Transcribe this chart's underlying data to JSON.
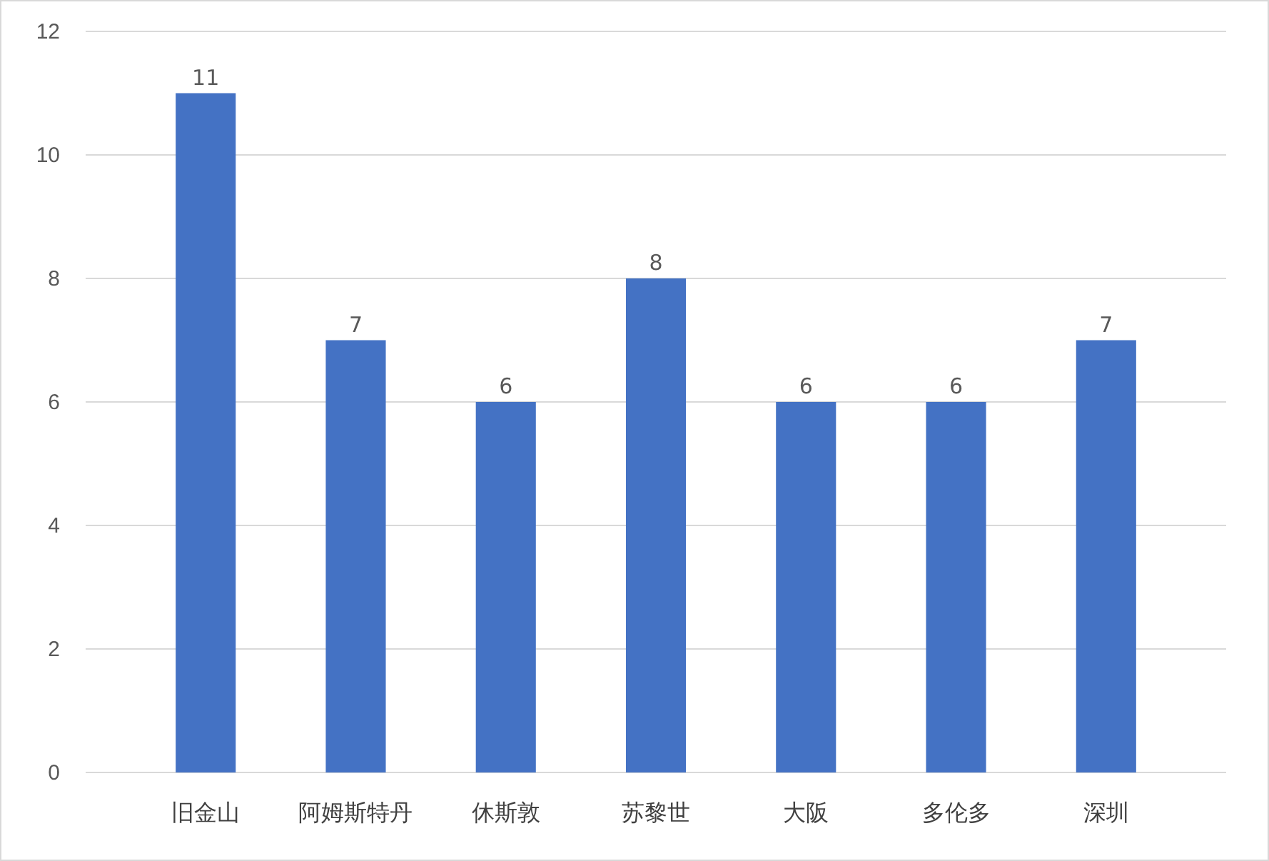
{
  "chart_data": {
    "type": "bar",
    "categories": [
      "旧金山",
      "阿姆斯特丹",
      "休斯敦",
      "苏黎世",
      "大阪",
      "多伦多",
      "深圳"
    ],
    "values": [
      11,
      7,
      6,
      8,
      6,
      6,
      7
    ],
    "color": "#4472c4",
    "ylim": [
      0,
      12
    ],
    "yticks": [
      0,
      2,
      4,
      6,
      8,
      10,
      12
    ],
    "grid": "y",
    "data_labels": true
  }
}
